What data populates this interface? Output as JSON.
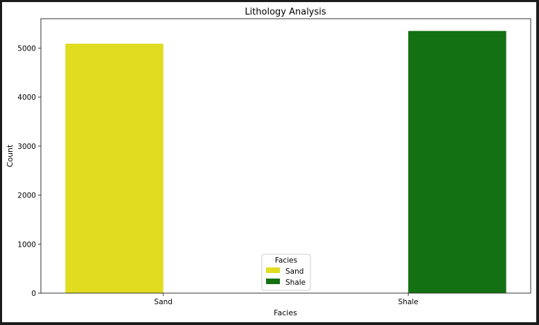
{
  "chart_data": {
    "type": "bar",
    "title": "Lithology Analysis",
    "xlabel": "Facies",
    "ylabel": "Count",
    "categories": [
      "Sand",
      "Shale"
    ],
    "ylim": [
      0,
      5600
    ],
    "yticks": [
      0,
      1000,
      2000,
      3000,
      4000,
      5000
    ],
    "ytick_labels": [
      "0",
      "1000",
      "2000",
      "3000",
      "4000",
      "5000"
    ],
    "grid": false,
    "legend": {
      "title": "Facies",
      "placement": "bottom-center",
      "entries": [
        "Sand",
        "Shale"
      ]
    },
    "series": [
      {
        "name": "Sand",
        "color": "#e0dc1f",
        "values": [
          5090,
          null
        ]
      },
      {
        "name": "Shale",
        "color": "#137113",
        "values": [
          null,
          5350
        ]
      }
    ]
  }
}
